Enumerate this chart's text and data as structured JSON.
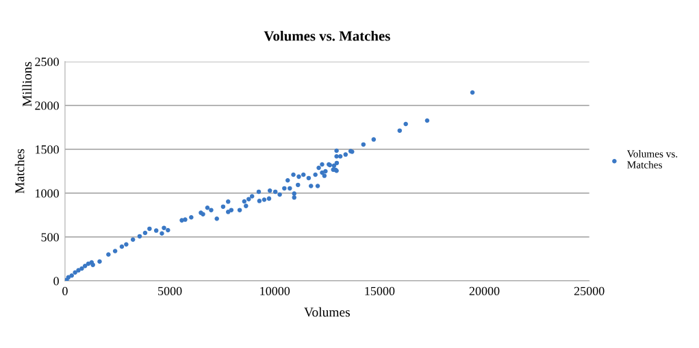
{
  "chart_data": {
    "type": "scatter",
    "title": "Volumes vs. Matches",
    "xlabel": "Volumes",
    "ylabel": "Matches",
    "annotations": [
      "Millions"
    ],
    "xlim": [
      0,
      25000
    ],
    "xticks": [
      0,
      5000,
      10000,
      15000,
      20000,
      25000
    ],
    "ylim": [
      0,
      2500
    ],
    "yticks": [
      0,
      500,
      1000,
      1500,
      2000,
      2500
    ],
    "grid": "y",
    "legend": "right",
    "marker": "circle",
    "series": [
      {
        "name": "Volumes vs. Matches",
        "color": "#3a78c5",
        "x": [
          0,
          40,
          80,
          160,
          320,
          480,
          640,
          800,
          955,
          1110,
          1270,
          1330,
          1650,
          2070,
          2390,
          2710,
          2920,
          3240,
          3560,
          3820,
          4030,
          4350,
          4620,
          4720,
          4910,
          5570,
          5730,
          6020,
          6480,
          6580,
          6790,
          6970,
          7240,
          7540,
          7780,
          7780,
          7930,
          8330,
          8550,
          8630,
          8760,
          8920,
          9240,
          9270,
          9500,
          9730,
          9770,
          10030,
          10240,
          10460,
          10620,
          10720,
          10930,
          10930,
          11110,
          11730,
          12050,
          10890,
          11150,
          11370,
          11620,
          11940,
          12100,
          12260,
          12420,
          12260,
          12580,
          12830,
          12960,
          12900,
          12370,
          12630,
          12790,
          12950,
          12950,
          12950,
          13130,
          13380,
          13620,
          13690,
          14230,
          14720,
          15960,
          16250,
          17270,
          19430
        ],
        "values": [
          0,
          5,
          10,
          40,
          60,
          95,
          120,
          140,
          170,
          195,
          210,
          182,
          220,
          300,
          340,
          390,
          416,
          470,
          508,
          547,
          594,
          573,
          541,
          604,
          578,
          690,
          698,
          724,
          776,
          760,
          833,
          807,
          708,
          846,
          903,
          786,
          807,
          807,
          906,
          854,
          932,
          964,
          1016,
          911,
          925,
          938,
          1029,
          1016,
          984,
          1055,
          1146,
          1055,
          995,
          950,
          1094,
          1081,
          1081,
          1211,
          1188,
          1211,
          1172,
          1211,
          1289,
          1328,
          1250,
          1234,
          1328,
          1313,
          1344,
          1266,
          1198,
          1320,
          1268,
          1255,
          1484,
          1419,
          1419,
          1440,
          1479,
          1472,
          1555,
          1612,
          1713,
          1789,
          1828,
          2148
        ]
      }
    ]
  }
}
